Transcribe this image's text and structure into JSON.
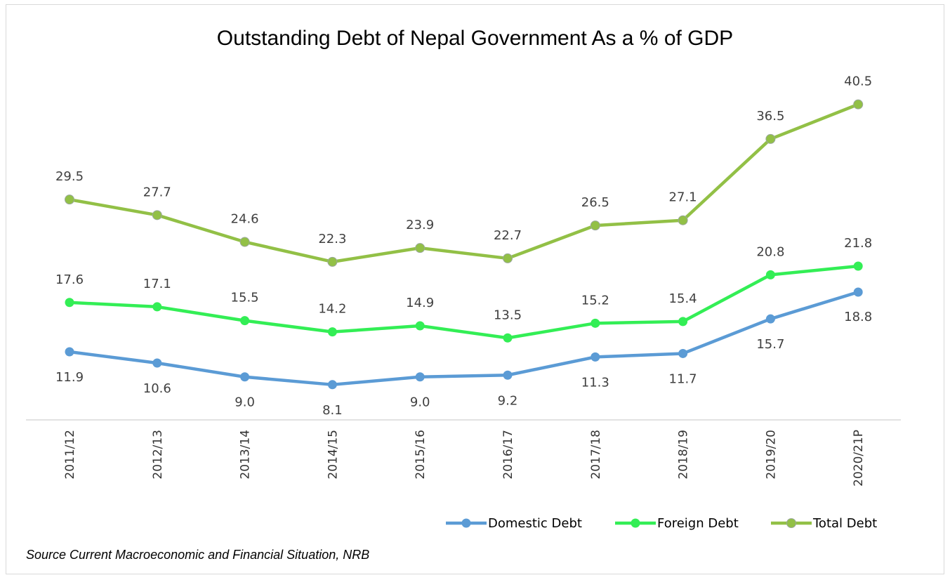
{
  "chart_data": {
    "type": "line",
    "title": "Outstanding Debt of Nepal Government As a % of GDP",
    "xlabel": "",
    "ylabel": "",
    "categories": [
      "2011/12",
      "2012/13",
      "2013/14",
      "2014/15",
      "2015/16",
      "2016/17",
      "2017/18",
      "2018/19",
      "2019/20",
      "2020/21P"
    ],
    "series": [
      {
        "name": "Domestic Debt",
        "color": "#5b9bd5",
        "values": [
          11.9,
          10.6,
          9.0,
          8.1,
          9.0,
          9.2,
          11.3,
          11.7,
          15.7,
          18.8
        ],
        "labels": [
          "11.9",
          "10.6",
          "9.0",
          "8.1",
          "9.0",
          "9.2",
          "11.3",
          "11.7",
          "15.7",
          "18.8"
        ]
      },
      {
        "name": "Foreign Debt",
        "color": "#33ee55",
        "values": [
          17.6,
          17.1,
          15.5,
          14.2,
          14.9,
          13.5,
          15.2,
          15.4,
          20.8,
          21.8
        ],
        "labels": [
          "17.6",
          "17.1",
          "15.5",
          "14.2",
          "14.9",
          "13.5",
          "15.2",
          "15.4",
          "20.8",
          "21.8"
        ]
      },
      {
        "name": "Total Debt",
        "color": "#92c046",
        "values": [
          29.5,
          27.7,
          24.6,
          22.3,
          23.9,
          22.7,
          26.5,
          27.1,
          36.5,
          40.5
        ],
        "labels": [
          "29.5",
          "27.7",
          "24.6",
          "22.3",
          "23.9",
          "22.7",
          "26.5",
          "27.1",
          "36.5",
          "40.5"
        ]
      }
    ],
    "legend_position": "bottom-right",
    "grid": false,
    "source": "Source  Current Macroeconomic and Financial Situation, NRB"
  }
}
